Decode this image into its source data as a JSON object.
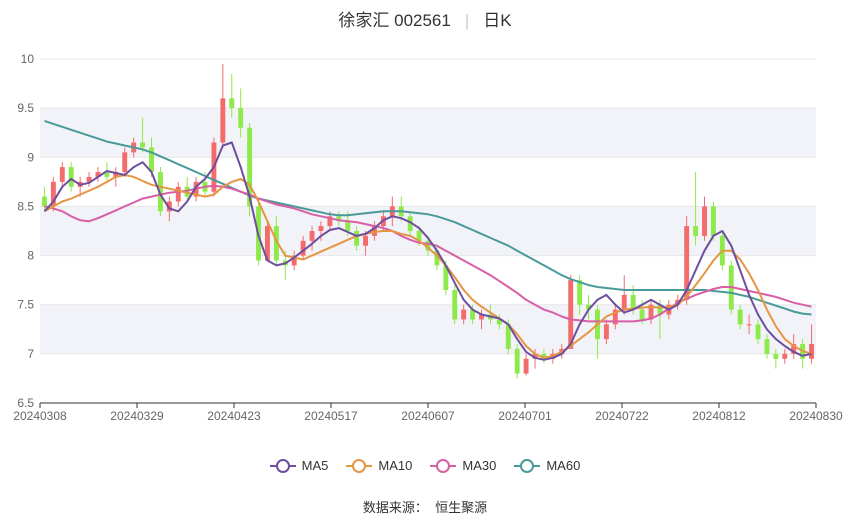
{
  "title": {
    "name": "徐家汇 002561",
    "period": "日K"
  },
  "source": "数据来源：  恒生聚源",
  "colors": {
    "up": "#f36b6b",
    "down": "#8ee94a",
    "ma5": "#6e4e9e",
    "ma10": "#e69543",
    "ma30": "#d85fa5",
    "ma60": "#4a9a9a",
    "band": "#f2f3f8",
    "grid": "#e6e6e6",
    "axis": "#666666"
  },
  "chart_data": {
    "type": "candlestick",
    "ylim": [
      6.5,
      10
    ],
    "yticks": [
      "6.5",
      "7",
      "7.5",
      "8",
      "8.5",
      "9",
      "9.5",
      "10"
    ],
    "xticks": [
      "20240308",
      "20240329",
      "20240423",
      "20240517",
      "20240607",
      "20240701",
      "20240722",
      "20240812",
      "20240830"
    ],
    "legend": [
      "MA5",
      "MA10",
      "MA30",
      "MA60"
    ],
    "candles": [
      [
        8.6,
        8.7,
        8.45,
        8.5
      ],
      [
        8.5,
        8.8,
        8.45,
        8.75
      ],
      [
        8.75,
        8.95,
        8.7,
        8.9
      ],
      [
        8.9,
        8.95,
        8.65,
        8.7
      ],
      [
        8.7,
        8.8,
        8.6,
        8.75
      ],
      [
        8.75,
        8.85,
        8.7,
        8.8
      ],
      [
        8.8,
        8.9,
        8.75,
        8.85
      ],
      [
        8.85,
        8.95,
        8.75,
        8.8
      ],
      [
        8.8,
        8.9,
        8.7,
        8.85
      ],
      [
        8.85,
        9.1,
        8.8,
        9.05
      ],
      [
        9.05,
        9.2,
        9.0,
        9.15
      ],
      [
        9.15,
        9.4,
        9.05,
        9.1
      ],
      [
        9.1,
        9.2,
        8.8,
        8.85
      ],
      [
        8.85,
        8.9,
        8.4,
        8.45
      ],
      [
        8.45,
        8.6,
        8.35,
        8.55
      ],
      [
        8.55,
        8.75,
        8.5,
        8.7
      ],
      [
        8.7,
        8.8,
        8.55,
        8.6
      ],
      [
        8.6,
        8.8,
        8.55,
        8.75
      ],
      [
        8.75,
        8.85,
        8.6,
        8.65
      ],
      [
        8.65,
        9.2,
        8.6,
        9.15
      ],
      [
        9.15,
        9.95,
        9.1,
        9.6
      ],
      [
        9.6,
        9.85,
        9.4,
        9.5
      ],
      [
        9.5,
        9.7,
        9.2,
        9.3
      ],
      [
        9.3,
        9.35,
        8.4,
        8.5
      ],
      [
        8.5,
        8.55,
        7.9,
        7.95
      ],
      [
        7.95,
        8.35,
        7.95,
        8.3
      ],
      [
        8.3,
        8.4,
        7.9,
        7.95
      ],
      [
        7.95,
        8.05,
        7.75,
        7.9
      ],
      [
        7.9,
        8.05,
        7.85,
        8.0
      ],
      [
        8.0,
        8.2,
        7.95,
        8.15
      ],
      [
        8.15,
        8.3,
        8.05,
        8.25
      ],
      [
        8.25,
        8.35,
        8.15,
        8.3
      ],
      [
        8.3,
        8.45,
        8.25,
        8.4
      ],
      [
        8.4,
        8.45,
        8.3,
        8.35
      ],
      [
        8.35,
        8.45,
        8.2,
        8.25
      ],
      [
        8.25,
        8.3,
        8.05,
        8.1
      ],
      [
        8.1,
        8.25,
        8.0,
        8.2
      ],
      [
        8.2,
        8.35,
        8.15,
        8.3
      ],
      [
        8.3,
        8.45,
        8.25,
        8.4
      ],
      [
        8.4,
        8.6,
        8.3,
        8.5
      ],
      [
        8.5,
        8.6,
        8.35,
        8.4
      ],
      [
        8.4,
        8.45,
        8.2,
        8.25
      ],
      [
        8.25,
        8.3,
        8.1,
        8.15
      ],
      [
        8.15,
        8.2,
        8.0,
        8.05
      ],
      [
        8.05,
        8.1,
        7.85,
        7.9
      ],
      [
        7.9,
        7.95,
        7.6,
        7.65
      ],
      [
        7.65,
        7.7,
        7.3,
        7.35
      ],
      [
        7.35,
        7.5,
        7.3,
        7.45
      ],
      [
        7.45,
        7.5,
        7.3,
        7.35
      ],
      [
        7.35,
        7.45,
        7.25,
        7.4
      ],
      [
        7.4,
        7.5,
        7.3,
        7.35
      ],
      [
        7.35,
        7.4,
        7.25,
        7.3
      ],
      [
        7.3,
        7.35,
        7.0,
        7.05
      ],
      [
        7.05,
        7.1,
        6.75,
        6.8
      ],
      [
        6.8,
        7.0,
        6.78,
        6.95
      ],
      [
        6.95,
        7.05,
        6.85,
        7.0
      ],
      [
        7.0,
        7.05,
        6.9,
        6.95
      ],
      [
        6.95,
        7.05,
        6.9,
        7.0
      ],
      [
        7.0,
        7.1,
        6.95,
        7.05
      ],
      [
        7.05,
        7.8,
        7.05,
        7.75
      ],
      [
        7.75,
        7.8,
        7.4,
        7.5
      ],
      [
        7.5,
        7.6,
        7.35,
        7.45
      ],
      [
        7.45,
        7.5,
        6.95,
        7.15
      ],
      [
        7.15,
        7.35,
        7.1,
        7.3
      ],
      [
        7.3,
        7.5,
        7.25,
        7.45
      ],
      [
        7.45,
        7.8,
        7.4,
        7.6
      ],
      [
        7.6,
        7.7,
        7.4,
        7.45
      ],
      [
        7.45,
        7.55,
        7.3,
        7.35
      ],
      [
        7.35,
        7.55,
        7.3,
        7.5
      ],
      [
        7.5,
        7.55,
        7.15,
        7.4
      ],
      [
        7.4,
        7.55,
        7.35,
        7.5
      ],
      [
        7.5,
        7.6,
        7.45,
        7.55
      ],
      [
        7.55,
        8.4,
        7.5,
        8.3
      ],
      [
        8.3,
        8.85,
        8.1,
        8.2
      ],
      [
        8.2,
        8.6,
        8.15,
        8.5
      ],
      [
        8.5,
        8.55,
        8.15,
        8.2
      ],
      [
        8.2,
        8.25,
        7.85,
        7.9
      ],
      [
        7.9,
        7.95,
        7.4,
        7.45
      ],
      [
        7.45,
        7.5,
        7.25,
        7.3
      ],
      [
        7.3,
        7.4,
        7.2,
        7.3
      ],
      [
        7.3,
        7.35,
        7.1,
        7.15
      ],
      [
        7.15,
        7.2,
        6.95,
        7.0
      ],
      [
        7.0,
        7.05,
        6.85,
        6.95
      ],
      [
        6.95,
        7.05,
        6.9,
        7.0
      ],
      [
        7.0,
        7.2,
        6.95,
        7.1
      ],
      [
        7.1,
        7.15,
        6.85,
        6.95
      ],
      [
        6.95,
        7.3,
        6.9,
        7.1
      ]
    ],
    "ma5": [
      8.45,
      8.55,
      8.7,
      8.78,
      8.72,
      8.74,
      8.8,
      8.86,
      8.84,
      8.82,
      8.9,
      8.95,
      8.85,
      8.62,
      8.48,
      8.45,
      8.55,
      8.7,
      8.78,
      8.9,
      9.12,
      9.15,
      8.9,
      8.6,
      8.2,
      7.95,
      7.9,
      7.92,
      7.98,
      8.05,
      8.12,
      8.2,
      8.26,
      8.28,
      8.24,
      8.2,
      8.22,
      8.28,
      8.36,
      8.4,
      8.38,
      8.34,
      8.28,
      8.18,
      8.05,
      7.9,
      7.72,
      7.55,
      7.45,
      7.4,
      7.38,
      7.36,
      7.3,
      7.15,
      7.02,
      6.96,
      6.94,
      6.96,
      7.0,
      7.1,
      7.3,
      7.45,
      7.55,
      7.6,
      7.5,
      7.42,
      7.45,
      7.5,
      7.55,
      7.5,
      7.45,
      7.5,
      7.65,
      7.85,
      8.05,
      8.2,
      8.25,
      8.1,
      7.85,
      7.6,
      7.4,
      7.25,
      7.15,
      7.08,
      7.02,
      6.98,
      7.0
    ],
    "ma10": [
      8.45,
      8.5,
      8.55,
      8.58,
      8.62,
      8.66,
      8.7,
      8.75,
      8.8,
      8.82,
      8.8,
      8.76,
      8.72,
      8.7,
      8.68,
      8.66,
      8.64,
      8.62,
      8.6,
      8.62,
      8.7,
      8.75,
      8.78,
      8.72,
      8.55,
      8.35,
      8.15,
      8.0,
      7.98,
      7.96,
      8.0,
      8.04,
      8.08,
      8.12,
      8.16,
      8.2,
      8.22,
      8.24,
      8.25,
      8.25,
      8.22,
      8.2,
      8.15,
      8.08,
      8.0,
      7.9,
      7.78,
      7.65,
      7.55,
      7.48,
      7.42,
      7.36,
      7.3,
      7.2,
      7.08,
      7.0,
      6.96,
      6.98,
      7.02,
      7.08,
      7.15,
      7.22,
      7.3,
      7.38,
      7.42,
      7.45,
      7.46,
      7.47,
      7.48,
      7.47,
      7.48,
      7.5,
      7.58,
      7.7,
      7.82,
      7.95,
      8.05,
      8.05,
      7.96,
      7.82,
      7.65,
      7.45,
      7.28,
      7.15,
      7.08,
      7.03,
      7.0
    ],
    "ma30": [
      8.5,
      8.48,
      8.45,
      8.4,
      8.36,
      8.35,
      8.38,
      8.42,
      8.46,
      8.5,
      8.54,
      8.58,
      8.6,
      8.62,
      8.64,
      8.65,
      8.66,
      8.68,
      8.7,
      8.71,
      8.7,
      8.68,
      8.65,
      8.62,
      8.58,
      8.55,
      8.52,
      8.5,
      8.48,
      8.45,
      8.42,
      8.4,
      8.38,
      8.36,
      8.35,
      8.34,
      8.32,
      8.3,
      8.28,
      8.25,
      8.2,
      8.16,
      8.13,
      8.12,
      8.1,
      8.05,
      8.0,
      7.95,
      7.9,
      7.85,
      7.8,
      7.74,
      7.68,
      7.62,
      7.55,
      7.5,
      7.45,
      7.42,
      7.38,
      7.35,
      7.34,
      7.33,
      7.33,
      7.33,
      7.33,
      7.33,
      7.33,
      7.34,
      7.36,
      7.4,
      7.46,
      7.52,
      7.56,
      7.6,
      7.63,
      7.66,
      7.68,
      7.68,
      7.66,
      7.64,
      7.62,
      7.6,
      7.58,
      7.55,
      7.52,
      7.5,
      7.48
    ],
    "ma60": [
      9.37,
      9.34,
      9.31,
      9.28,
      9.25,
      9.22,
      9.19,
      9.16,
      9.14,
      9.12,
      9.1,
      9.08,
      9.05,
      9.01,
      8.97,
      8.93,
      8.89,
      8.85,
      8.81,
      8.77,
      8.73,
      8.69,
      8.65,
      8.61,
      8.58,
      8.56,
      8.54,
      8.52,
      8.5,
      8.48,
      8.46,
      8.44,
      8.42,
      8.41,
      8.41,
      8.42,
      8.43,
      8.44,
      8.45,
      8.45,
      8.45,
      8.44,
      8.43,
      8.42,
      8.4,
      8.37,
      8.34,
      8.3,
      8.26,
      8.22,
      8.18,
      8.14,
      8.1,
      8.05,
      8.0,
      7.95,
      7.9,
      7.85,
      7.8,
      7.76,
      7.73,
      7.7,
      7.68,
      7.67,
      7.66,
      7.65,
      7.65,
      7.65,
      7.65,
      7.65,
      7.65,
      7.65,
      7.65,
      7.65,
      7.65,
      7.64,
      7.63,
      7.62,
      7.6,
      7.58,
      7.55,
      7.52,
      7.49,
      7.46,
      7.43,
      7.41,
      7.4
    ]
  }
}
